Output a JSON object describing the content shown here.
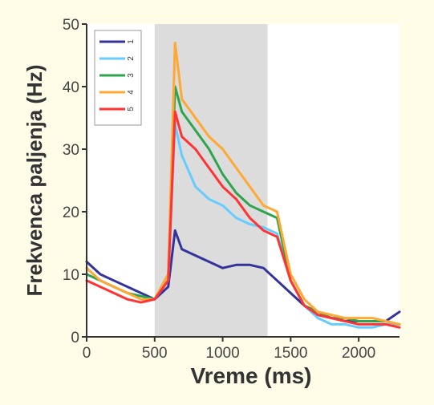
{
  "chart_data": {
    "type": "line",
    "ylabel": "Frekvenca paljenja (Hz)",
    "xlabel": "Vreme (ms)",
    "xlim": [
      0,
      2300
    ],
    "ylim": [
      0,
      50
    ],
    "x_ticks": [
      0,
      500,
      1000,
      1500,
      2000
    ],
    "y_ticks": [
      0,
      10,
      20,
      30,
      40,
      50
    ],
    "shaded_interval": [
      500,
      1330
    ],
    "legend": {
      "position": "top-left",
      "entries": [
        "1",
        "2",
        "3",
        "4",
        "5"
      ]
    },
    "colors": [
      "#33339a",
      "#66ccff",
      "#2ea44f",
      "#ffa833",
      "#ff3333"
    ],
    "series": [
      {
        "name": "1",
        "x": [
          0,
          100,
          200,
          300,
          400,
          500,
          600,
          650,
          700,
          800,
          900,
          1000,
          1100,
          1200,
          1300,
          1400,
          1500,
          1600,
          1700,
          1800,
          1900,
          2000,
          2100,
          2200,
          2300
        ],
        "values": [
          12,
          10,
          9,
          8,
          7,
          6,
          8,
          17,
          14,
          13,
          12,
          11,
          11.5,
          11.5,
          11,
          9,
          7,
          5,
          3.5,
          3,
          2.5,
          2.5,
          2.5,
          2.5,
          4
        ]
      },
      {
        "name": "2",
        "x": [
          0,
          100,
          200,
          300,
          400,
          500,
          600,
          650,
          700,
          800,
          900,
          1000,
          1100,
          1200,
          1300,
          1400,
          1500,
          1600,
          1700,
          1800,
          1900,
          2000,
          2100,
          2200,
          2300
        ],
        "values": [
          11,
          9,
          8,
          7,
          6.5,
          6,
          9,
          34,
          29,
          24,
          22,
          21,
          19,
          18,
          17.5,
          16.5,
          9,
          5,
          3,
          2,
          2,
          1.5,
          1.5,
          2,
          2
        ]
      },
      {
        "name": "3",
        "x": [
          0,
          100,
          200,
          300,
          400,
          500,
          600,
          650,
          700,
          800,
          900,
          1000,
          1100,
          1200,
          1300,
          1400,
          1500,
          1600,
          1700,
          1800,
          1900,
          2000,
          2100,
          2200,
          2300
        ],
        "values": [
          10,
          9,
          8,
          7,
          6.5,
          6,
          10,
          40,
          36,
          33,
          30,
          26,
          23,
          21,
          20,
          19,
          9,
          5,
          4,
          3,
          3,
          2.5,
          2.5,
          2.5,
          2
        ]
      },
      {
        "name": "4",
        "x": [
          0,
          100,
          200,
          300,
          400,
          500,
          600,
          650,
          700,
          800,
          900,
          1000,
          1100,
          1200,
          1300,
          1400,
          1500,
          1600,
          1700,
          1800,
          1900,
          2000,
          2100,
          2200,
          2300
        ],
        "values": [
          11,
          9,
          8,
          7,
          6,
          6,
          10,
          47,
          38,
          35,
          32,
          30,
          27,
          24,
          21,
          20,
          10,
          6,
          4,
          3.5,
          3,
          3,
          3,
          2.5,
          2
        ]
      },
      {
        "name": "5",
        "x": [
          0,
          100,
          200,
          300,
          400,
          500,
          600,
          650,
          700,
          800,
          900,
          1000,
          1100,
          1200,
          1300,
          1400,
          1500,
          1600,
          1700,
          1800,
          1900,
          2000,
          2100,
          2200,
          2300
        ],
        "values": [
          9,
          8,
          7,
          6,
          5.5,
          6,
          9,
          36,
          32,
          30,
          27,
          24,
          22,
          19,
          17,
          16,
          9,
          5,
          3.5,
          3,
          2.5,
          2,
          2,
          2,
          1.5
        ]
      }
    ]
  }
}
